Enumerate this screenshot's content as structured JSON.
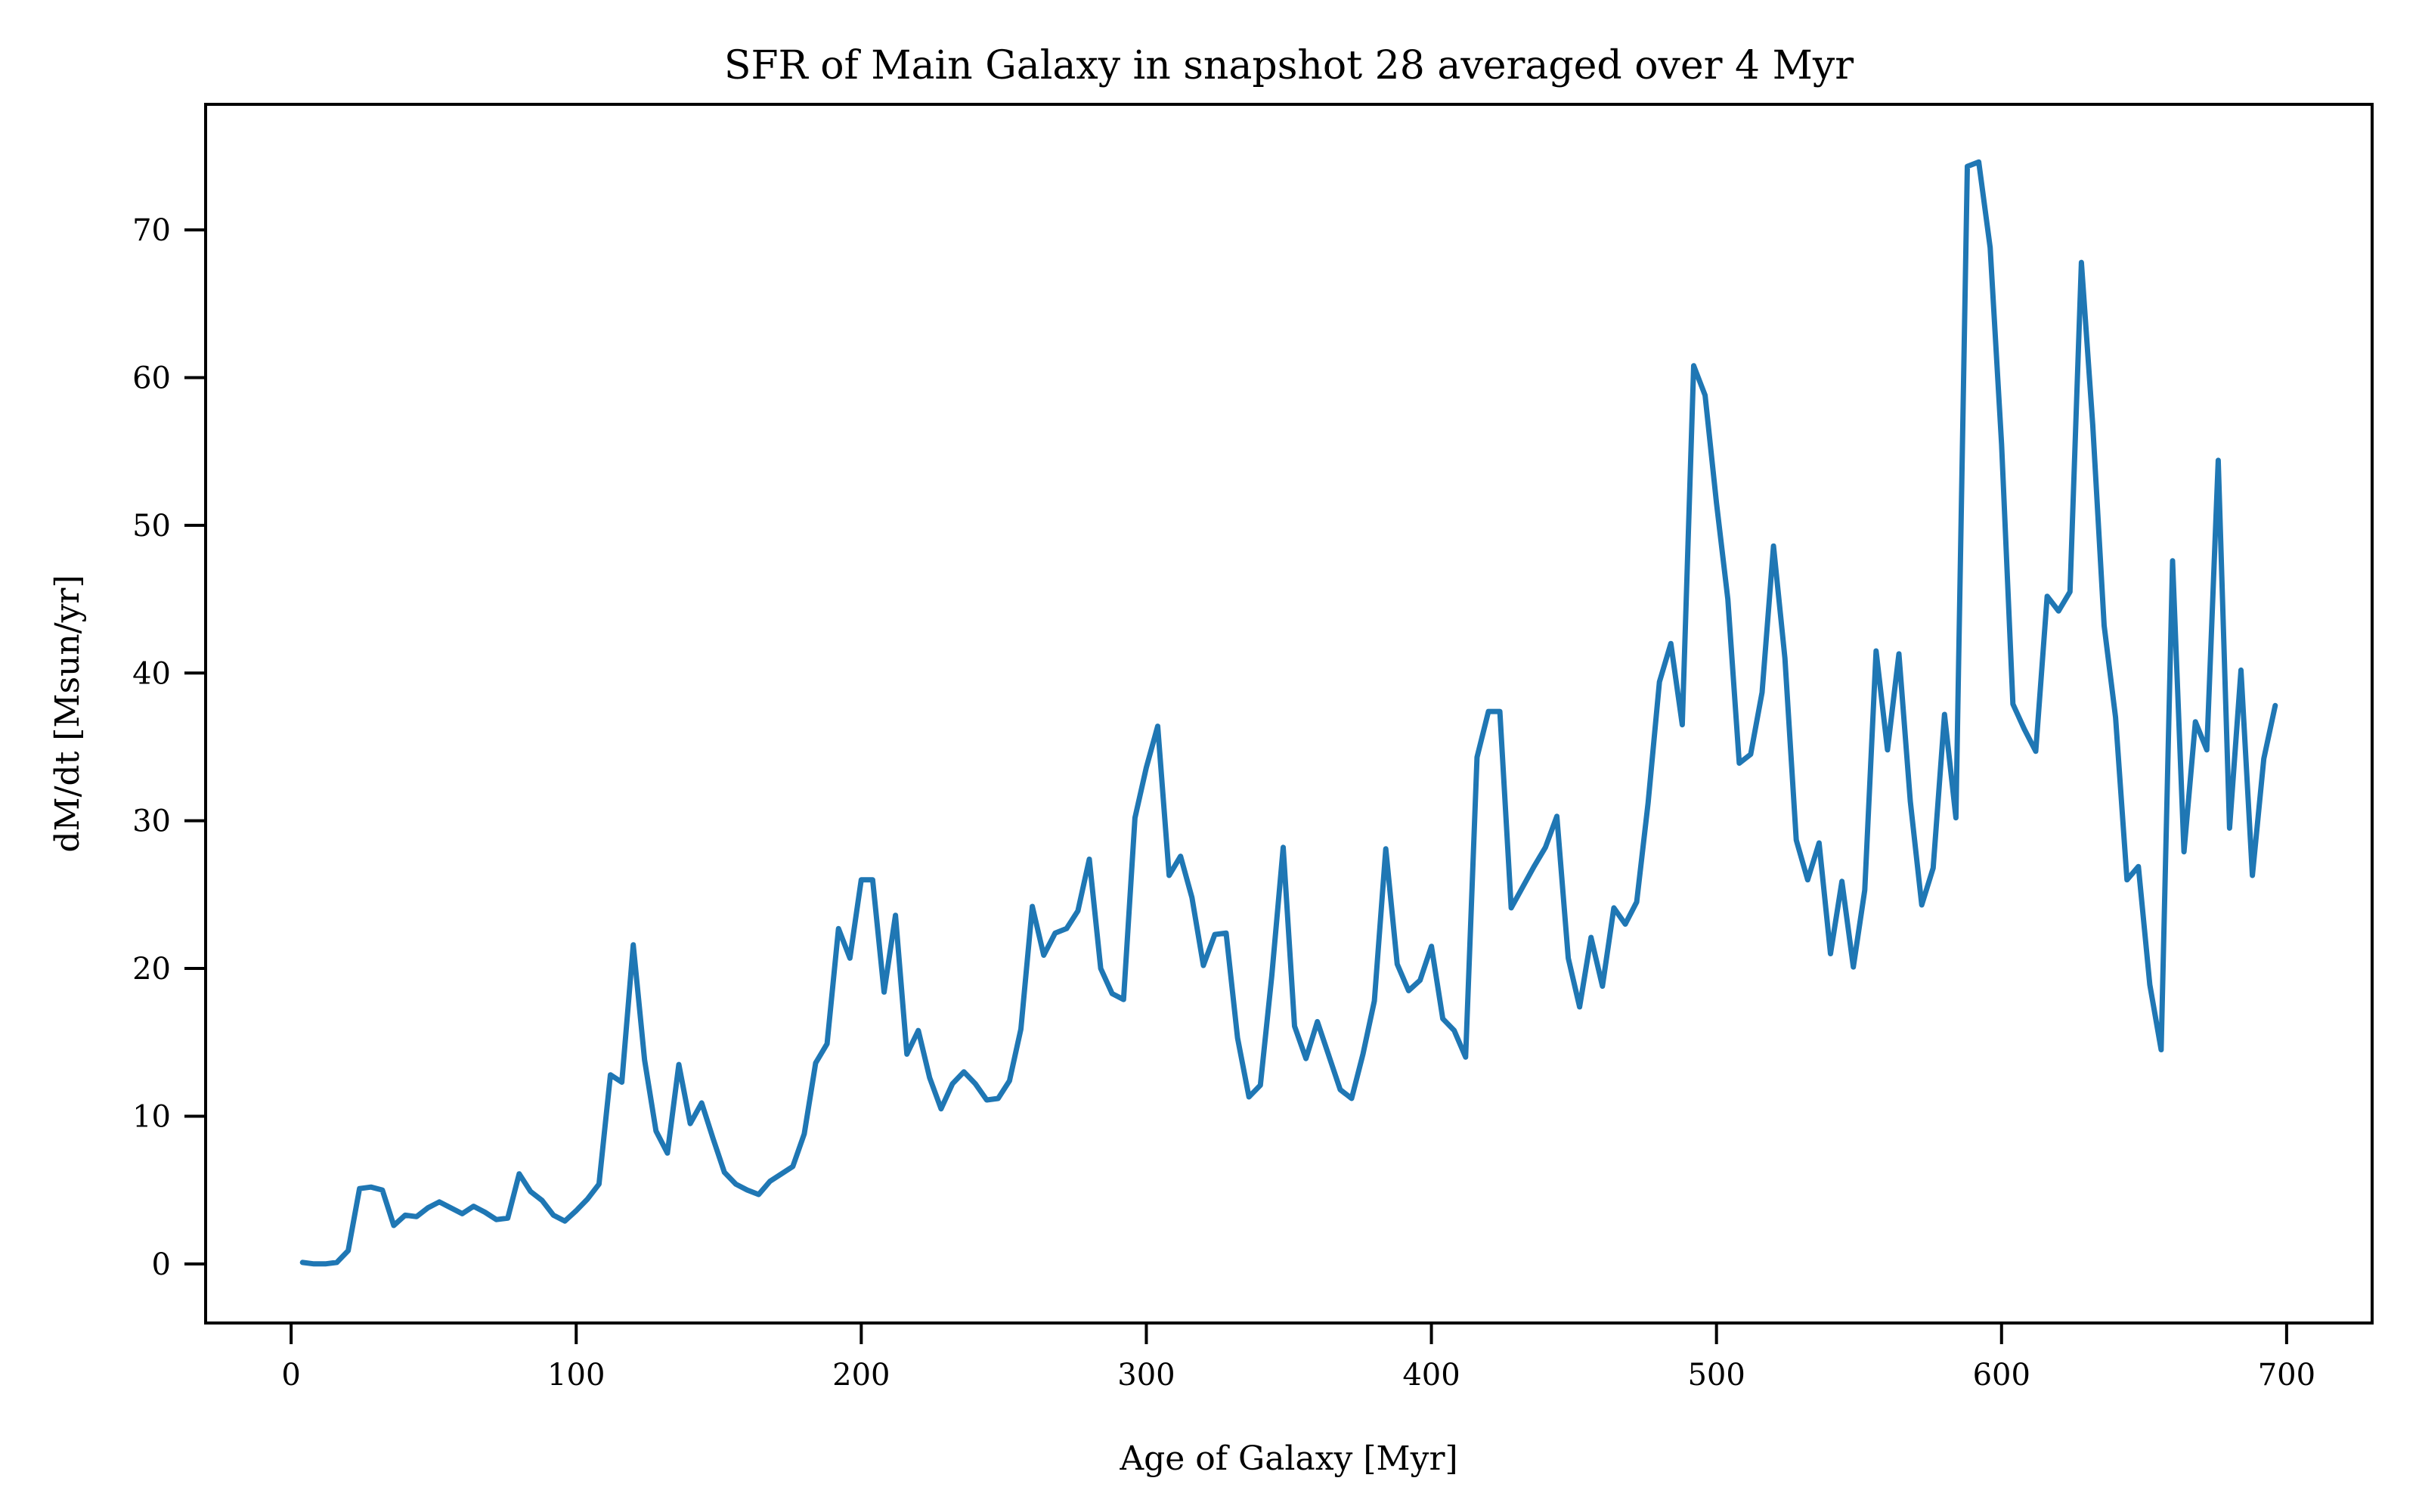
{
  "chart_data": {
    "type": "line",
    "title": "SFR of Main Galaxy in snapshot 28 averaged over 4 Myr",
    "xlabel": "Age of Galaxy [Myr]",
    "ylabel": "dM/dt [Msun/yr]",
    "xlim": [
      -30,
      730
    ],
    "ylim": [
      -4,
      78.5
    ],
    "xticks": [
      0,
      100,
      200,
      300,
      400,
      500,
      600,
      700
    ],
    "yticks": [
      0,
      10,
      20,
      30,
      40,
      50,
      60,
      70
    ],
    "grid": false,
    "series": [
      {
        "color": "#1f77b4",
        "x": [
          4,
          8,
          12,
          16,
          20,
          24,
          28,
          32,
          36,
          40,
          44,
          48,
          52,
          56,
          60,
          64,
          68,
          72,
          76,
          80,
          84,
          88,
          92,
          96,
          100,
          104,
          108,
          112,
          116,
          120,
          124,
          128,
          132,
          136,
          140,
          144,
          148,
          152,
          156,
          160,
          164,
          168,
          172,
          176,
          180,
          184,
          188,
          192,
          196,
          200,
          204,
          208,
          212,
          216,
          220,
          224,
          228,
          232,
          236,
          240,
          244,
          248,
          252,
          256,
          260,
          264,
          268,
          272,
          276,
          280,
          284,
          288,
          292,
          296,
          300,
          304,
          308,
          312,
          316,
          320,
          324,
          328,
          332,
          336,
          340,
          344,
          348,
          352,
          356,
          360,
          364,
          368,
          372,
          376,
          380,
          384,
          388,
          392,
          396,
          400,
          404,
          408,
          412,
          416,
          420,
          424,
          428,
          432,
          436,
          440,
          444,
          448,
          452,
          456,
          460,
          464,
          468,
          472,
          476,
          480,
          484,
          488,
          492,
          496,
          500,
          504,
          508,
          512,
          516,
          520,
          524,
          528,
          532,
          536,
          540,
          544,
          548,
          552,
          556,
          560,
          564,
          568,
          572,
          576,
          580,
          584,
          588,
          592,
          596,
          600,
          604,
          608,
          612,
          616,
          620,
          624,
          628,
          632,
          636,
          640,
          644,
          648,
          652,
          656,
          660,
          664,
          668,
          672,
          676,
          680,
          684,
          688,
          692,
          696
        ],
        "y": [
          0.1,
          0.0,
          0.0,
          0.1,
          0.9,
          5.1,
          5.2,
          5.0,
          2.6,
          3.3,
          3.2,
          3.8,
          4.2,
          3.8,
          3.4,
          3.9,
          3.5,
          3.0,
          3.1,
          6.1,
          4.9,
          4.3,
          3.3,
          2.9,
          3.6,
          4.4,
          5.4,
          12.8,
          12.3,
          21.6,
          13.8,
          9.0,
          7.5,
          13.5,
          9.5,
          10.9,
          8.5,
          6.2,
          5.4,
          5.0,
          4.7,
          5.6,
          6.1,
          6.6,
          8.8,
          13.6,
          14.9,
          22.7,
          20.7,
          26.0,
          26.0,
          18.4,
          23.6,
          14.2,
          15.8,
          12.6,
          10.5,
          12.2,
          13.0,
          12.2,
          11.1,
          11.2,
          12.4,
          15.9,
          24.2,
          20.9,
          22.4,
          22.7,
          23.9,
          27.4,
          20.0,
          18.3,
          17.9,
          30.2,
          33.6,
          36.4,
          26.3,
          27.6,
          24.8,
          20.2,
          22.3,
          22.4,
          15.3,
          11.3,
          12.1,
          19.5,
          28.2,
          16.1,
          13.9,
          16.4,
          14.1,
          11.8,
          11.2,
          14.2,
          17.8,
          28.1,
          20.3,
          18.5,
          19.2,
          21.5,
          16.6,
          15.8,
          14.0,
          34.3,
          37.4,
          37.4,
          24.1,
          25.5,
          26.9,
          28.2,
          30.3,
          20.7,
          17.4,
          22.1,
          18.8,
          24.1,
          23.0,
          24.5,
          31.2,
          39.4,
          42.0,
          36.5,
          60.8,
          58.8,
          51.5,
          45.0,
          33.9,
          34.5,
          38.7,
          48.6,
          41.0,
          28.7,
          26.0,
          28.5,
          21.0,
          25.9,
          20.1,
          25.3,
          41.5,
          34.8,
          41.3,
          31.3,
          24.3,
          26.8,
          37.2,
          30.2,
          74.3,
          74.6,
          68.8,
          55.5,
          37.9,
          36.2,
          34.7,
          45.2,
          44.2,
          45.5,
          67.8,
          56.8,
          43.2,
          37.0,
          26.0,
          26.9,
          18.9,
          14.5,
          47.6,
          27.9,
          36.7,
          34.8,
          54.4,
          29.5,
          40.2,
          26.3,
          34.2,
          37.8
        ]
      }
    ]
  }
}
